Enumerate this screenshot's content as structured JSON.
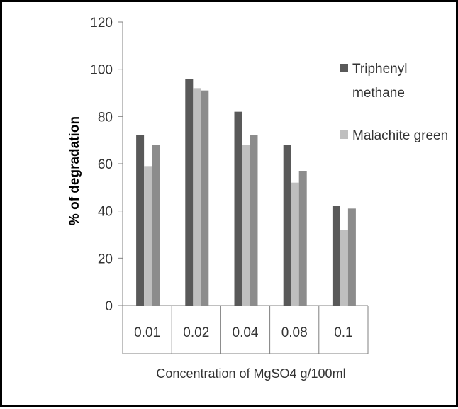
{
  "chart_data": {
    "type": "bar",
    "title": "",
    "xlabel": "Concentration of MgSO4 g/100ml",
    "ylabel": "% of degradation",
    "ylim": [
      0,
      120
    ],
    "yticks": [
      "0",
      "20",
      "40",
      "60",
      "80",
      "100",
      "120"
    ],
    "categories": [
      "0.01",
      "0.02",
      "0.04",
      "0.08",
      "0.1"
    ],
    "series": [
      {
        "name": "Triphenyl methane",
        "values": [
          72,
          96,
          82,
          68,
          42
        ],
        "color": "#595959"
      },
      {
        "name": "Malachite green",
        "values": [
          59,
          92,
          68,
          52,
          32
        ],
        "color": "#bfbfbf"
      },
      {
        "name": "",
        "values": [
          68,
          91,
          72,
          57,
          41
        ],
        "color": "#8c8c8c"
      }
    ],
    "legend": [
      {
        "lines": [
          "Triphenyl",
          "methane"
        ],
        "color": "#595959"
      },
      {
        "lines": [
          "Malachite green"
        ],
        "color": "#bfbfbf"
      }
    ],
    "grid": false,
    "legend_position": "right"
  }
}
